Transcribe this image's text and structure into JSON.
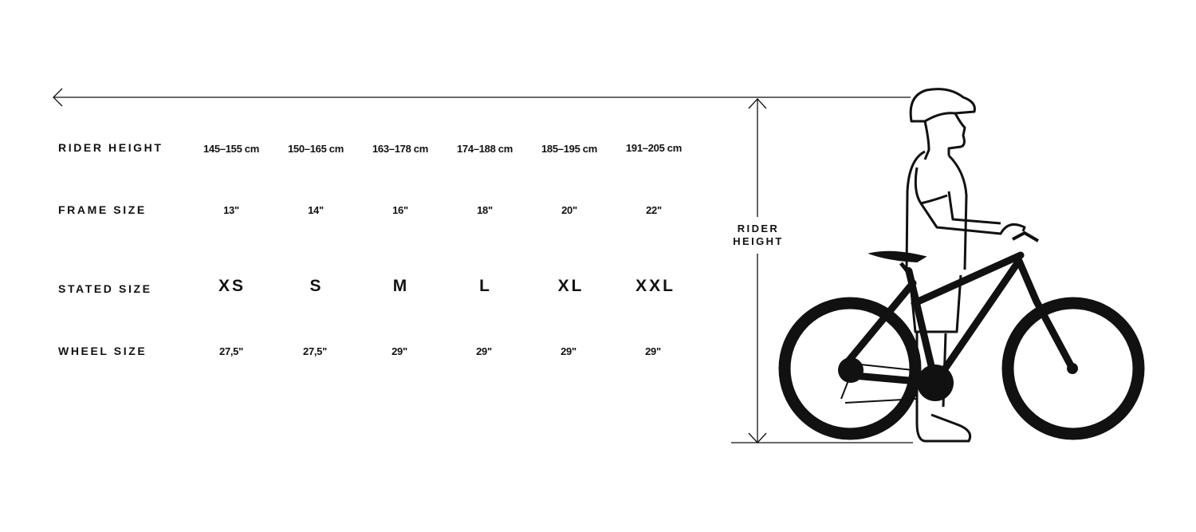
{
  "rows": [
    {
      "label": "RIDER HEIGHT",
      "values": [
        "145–155 cm",
        "150–165 cm",
        "163–178 cm",
        "174–188 cm",
        "185–195 cm",
        "191–205 cm"
      ]
    },
    {
      "label": "FRAME SIZE",
      "values": [
        "13\"",
        "14\"",
        "16\"",
        "18\"",
        "20\"",
        "22\""
      ]
    },
    {
      "label": "STATED SIZE",
      "values": [
        "XS",
        "S",
        "M",
        "L",
        "XL",
        "XXL"
      ]
    },
    {
      "label": "WHEEL SIZE",
      "values": [
        "27,5\"",
        "27,5\"",
        "29\"",
        "29\"",
        "29\"",
        "29\""
      ]
    }
  ],
  "illustration": {
    "dimension_label_line1": "RIDER",
    "dimension_label_line2": "HEIGHT",
    "icon": "rider-with-bicycle-icon",
    "color": "#111111"
  }
}
